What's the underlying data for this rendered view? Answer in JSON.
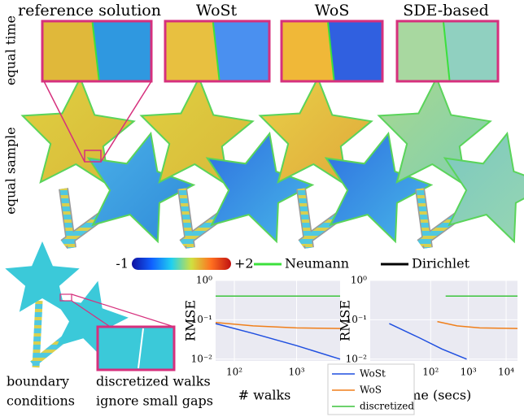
{
  "column_titles": [
    "reference solution",
    "WoSt",
    "WoS",
    "SDE-based"
  ],
  "row_labels": [
    "equal time",
    "equal sample"
  ],
  "colorbar": {
    "min_label": "-1",
    "max_label": "+2"
  },
  "boundary_legend": [
    "Neumann",
    "Dirichlet"
  ],
  "captions": {
    "left": [
      "boundary",
      "conditions"
    ],
    "right": [
      "discretized walks",
      "ignore small gaps"
    ]
  },
  "chart_data": [
    {
      "type": "line",
      "ylabel": "RMSE",
      "xlabel": "# walks",
      "log_x": true,
      "log_y": true,
      "xlim": [
        50,
        5000
      ],
      "ylim": [
        0.009,
        1
      ],
      "xticks": [
        {
          "value": 100,
          "label": "10²"
        },
        {
          "value": 1000,
          "label": "10³"
        }
      ],
      "yticks": [
        {
          "value": 1,
          "label": "10⁰"
        },
        {
          "value": 0.1,
          "label": "10⁻¹"
        },
        {
          "value": 0.01,
          "label": "10⁻²"
        }
      ],
      "series": [
        {
          "name": "WoSt",
          "color": "#1f4fe0",
          "x": [
            50,
            200,
            1000,
            5000
          ],
          "values": [
            0.08,
            0.045,
            0.022,
            0.01
          ]
        },
        {
          "name": "WoS",
          "color": "#f07f1a",
          "x": [
            50,
            200,
            1000,
            5000
          ],
          "values": [
            0.085,
            0.07,
            0.062,
            0.06
          ]
        },
        {
          "name": "discretized",
          "color": "#3cc43c",
          "x": [
            50,
            5000
          ],
          "values": [
            0.4,
            0.4
          ]
        }
      ]
    },
    {
      "type": "line",
      "ylabel": "RMSE",
      "xlabel": "time (secs)",
      "log_x": true,
      "log_y": true,
      "xlim": [
        2.5,
        20000
      ],
      "ylim": [
        0.009,
        1
      ],
      "xticks": [
        {
          "value": 100,
          "label": "10²"
        },
        {
          "value": 1000,
          "label": "10³"
        },
        {
          "value": 10000,
          "label": "10⁴"
        }
      ],
      "yticks": [
        {
          "value": 1,
          "label": "10⁰"
        },
        {
          "value": 0.1,
          "label": "10⁻¹"
        },
        {
          "value": 0.01,
          "label": "10⁻²"
        }
      ],
      "series": [
        {
          "color": "#1f4fe0",
          "x": [
            8,
            50,
            200,
            900
          ],
          "values": [
            0.08,
            0.035,
            0.018,
            0.01
          ]
        },
        {
          "color": "#f07f1a",
          "x": [
            150,
            500,
            2000,
            20000
          ],
          "values": [
            0.09,
            0.07,
            0.062,
            0.06
          ]
        },
        {
          "color": "#3cc43c",
          "x": [
            250,
            20000
          ],
          "values": [
            0.4,
            0.4
          ]
        }
      ]
    }
  ]
}
